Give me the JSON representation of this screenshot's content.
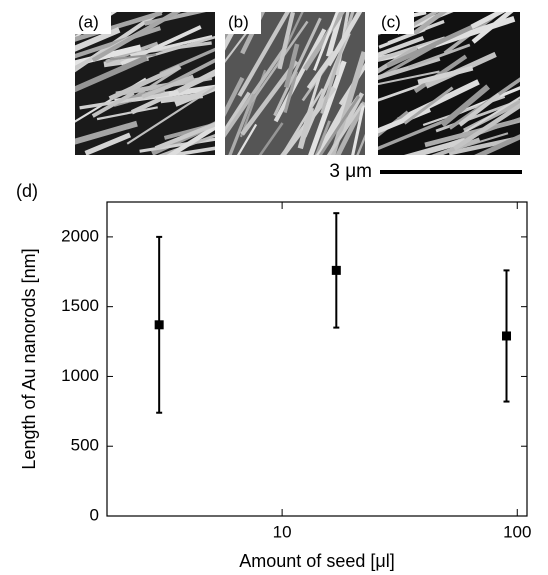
{
  "panels": [
    {
      "label": "(a)"
    },
    {
      "label": "(b)"
    },
    {
      "label": "(c)"
    }
  ],
  "scale_bar": "3 μm",
  "chart_data": {
    "type": "scatter",
    "title": "(d)",
    "xlabel": "Amount of seed [μl]",
    "ylabel": "Length of Au nanorods [nm]",
    "log_x": true,
    "xlim": [
      1.8,
      110
    ],
    "xticks": [
      10,
      100
    ],
    "ylim": [
      0,
      2250
    ],
    "yticks": [
      0,
      500,
      1000,
      1500,
      2000
    ],
    "series": [
      {
        "color": "#000000",
        "x": [
          3,
          17,
          90
        ],
        "values": [
          1370,
          1760,
          1290
        ],
        "errors": [
          630,
          410,
          470
        ]
      }
    ]
  }
}
